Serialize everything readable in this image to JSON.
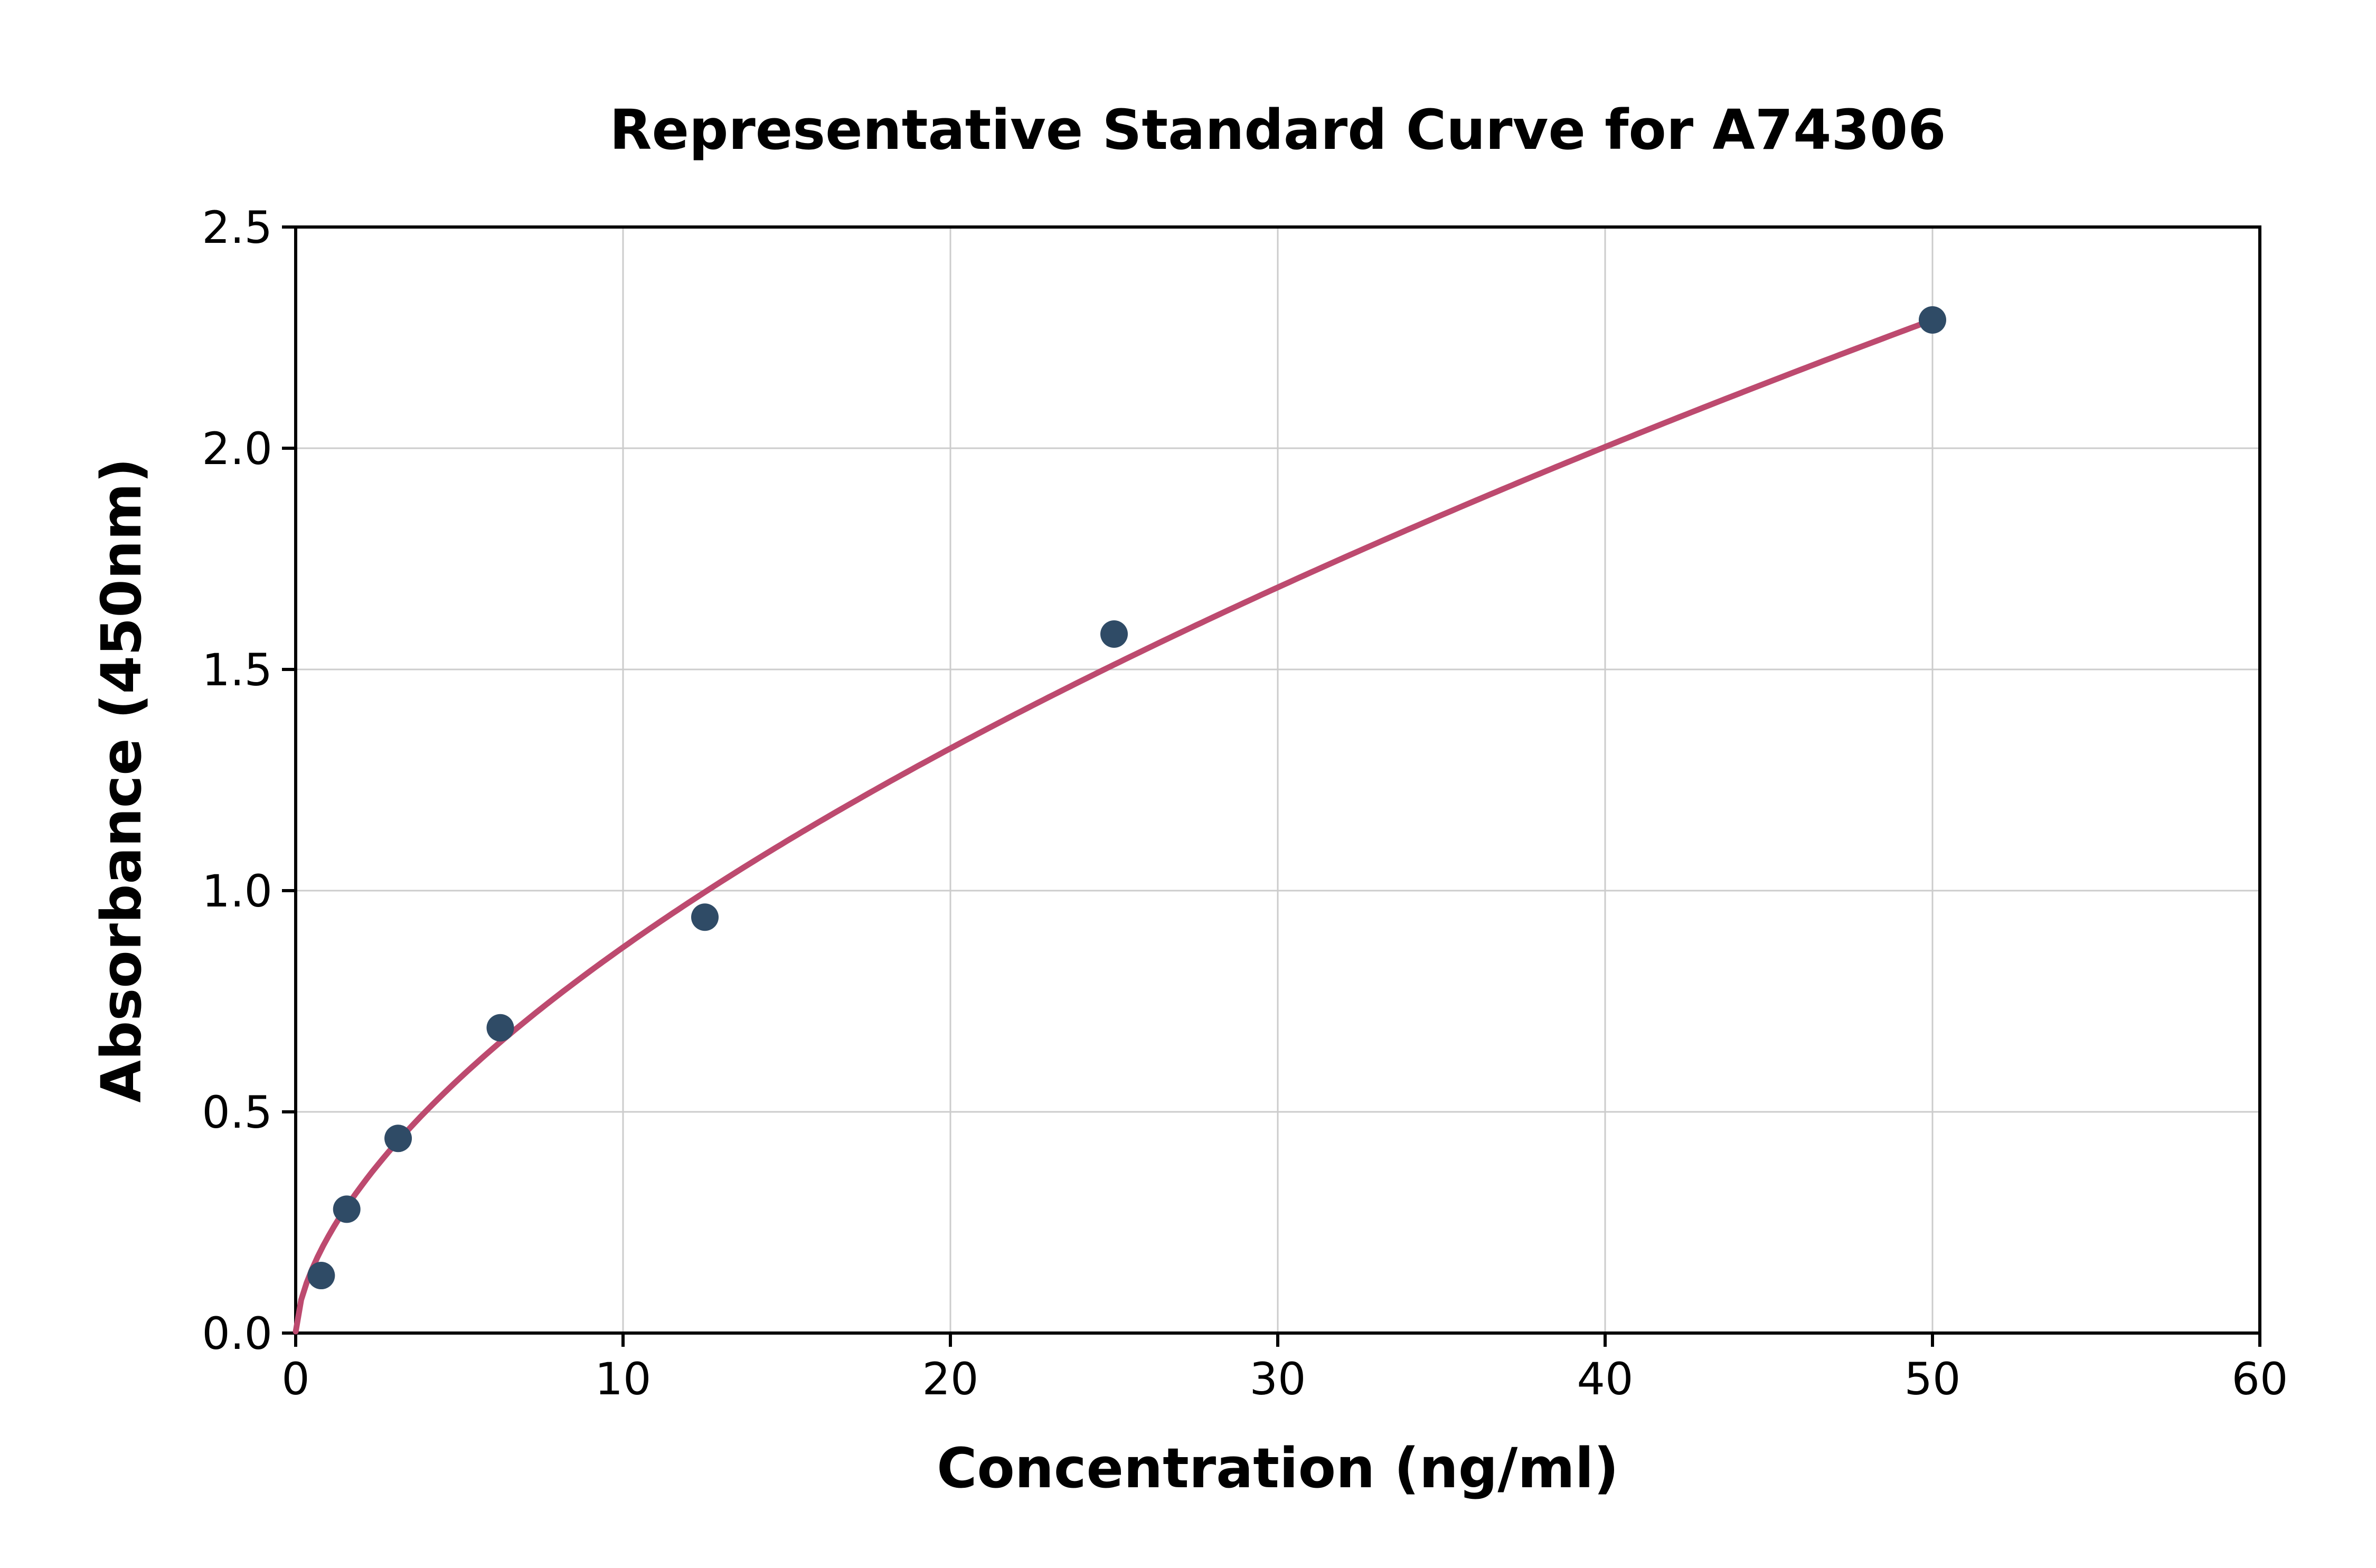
{
  "chart_data": {
    "type": "scatter",
    "title": "Representative Standard Curve for A74306",
    "xlabel": "Concentration (ng/ml)",
    "ylabel": "Absorbance (450nm)",
    "xlim": [
      0,
      60
    ],
    "ylim": [
      0,
      2.5
    ],
    "x_ticks": [
      0,
      10,
      20,
      30,
      40,
      50,
      60
    ],
    "x_tick_labels": [
      "0",
      "10",
      "20",
      "30",
      "40",
      "50",
      "60"
    ],
    "y_ticks": [
      0.0,
      0.5,
      1.0,
      1.5,
      2.0,
      2.5
    ],
    "y_tick_labels": [
      "0.0",
      "0.5",
      "1.0",
      "1.5",
      "2.0",
      "2.5"
    ],
    "grid": true,
    "legend": "none",
    "points": [
      {
        "x": 0.78,
        "y": 0.13
      },
      {
        "x": 1.56,
        "y": 0.28
      },
      {
        "x": 3.13,
        "y": 0.44
      },
      {
        "x": 6.25,
        "y": 0.69
      },
      {
        "x": 12.5,
        "y": 0.94
      },
      {
        "x": 25,
        "y": 1.58
      },
      {
        "x": 50,
        "y": 2.29
      }
    ],
    "fit_curve": {
      "type": "power",
      "a": 0.219,
      "b": 0.6,
      "x_start": 0.001,
      "x_end": 50
    },
    "colors": {
      "curve": "#bd4a6f",
      "points": "#2f4b66",
      "grid": "#cccccc",
      "axis": "#000000",
      "background": "#ffffff"
    }
  }
}
